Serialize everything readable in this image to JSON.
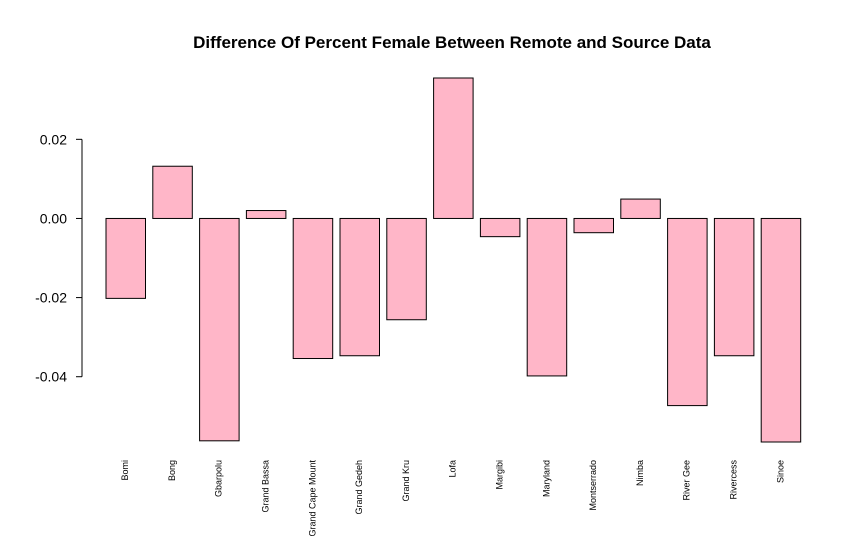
{
  "chart_data": {
    "type": "bar",
    "title": "Difference Of Percent Female Between Remote and Source Data",
    "xlabel": "",
    "ylabel": "",
    "categories": [
      "Bomi",
      "Bong",
      "Gbarpolu",
      "Grand Bassa",
      "Grand Cape Mount",
      "Grand Gedeh",
      "Grand Kru",
      "Lofa",
      "Margibi",
      "Maryland",
      "Montserrado",
      "Nimba",
      "River Gee",
      "Rivercess",
      "Sinoe"
    ],
    "values": [
      -0.0202,
      0.0132,
      -0.0562,
      0.002,
      -0.0354,
      -0.0347,
      -0.0256,
      0.0355,
      -0.0046,
      -0.0398,
      -0.0036,
      0.0049,
      -0.0473,
      -0.0347,
      -0.0565
    ],
    "ylim": [
      -0.0565,
      0.0355
    ],
    "yticks": [
      -0.04,
      -0.02,
      0.0,
      0.02
    ],
    "ytick_labels": [
      "-0.04",
      "-0.02",
      "0.00",
      "0.02"
    ],
    "bar_color": "#ffb6c8",
    "bar_border_color": "#000000",
    "grid": false,
    "legend": "none"
  }
}
